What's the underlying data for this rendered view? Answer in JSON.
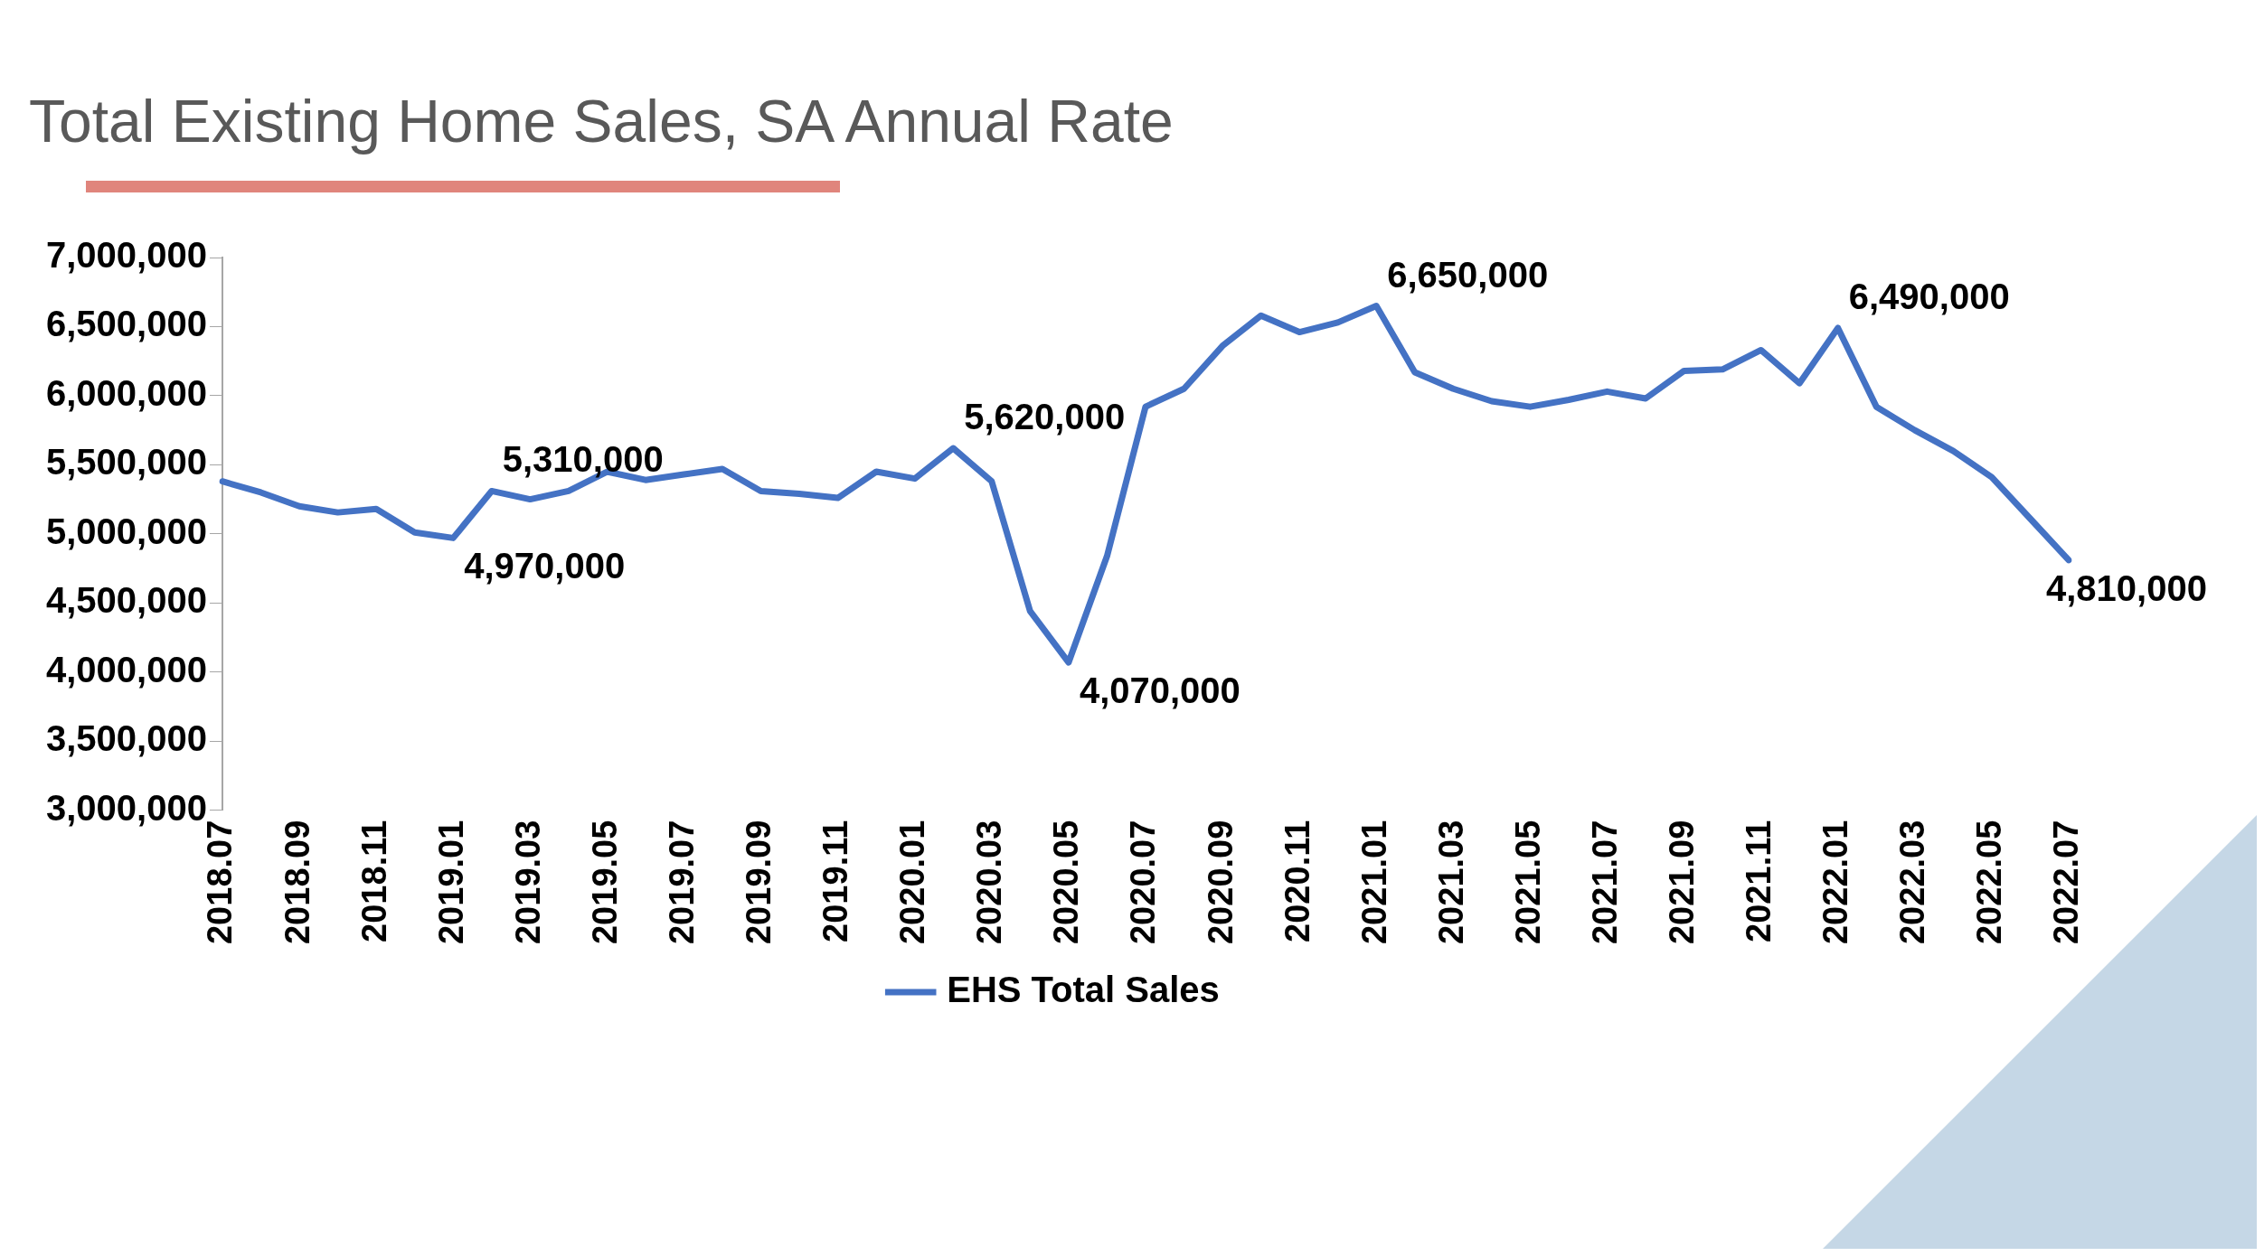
{
  "chart_data": {
    "type": "line",
    "title": "Total Existing Home Sales, SA Annual Rate",
    "categories": [
      "2018.07",
      null,
      "2018.09",
      null,
      "2018.11",
      null,
      "2019.01",
      null,
      "2019.03",
      null,
      "2019.05",
      null,
      "2019.07",
      null,
      "2019.09",
      null,
      "2019.11",
      null,
      "2020.01",
      null,
      "2020.03",
      null,
      "2020.05",
      null,
      "2020.07",
      null,
      "2020.09",
      null,
      "2020.11",
      null,
      "2021.01",
      null,
      "2021.03",
      null,
      "2021.05",
      null,
      "2021.07",
      null,
      "2021.09",
      null,
      "2021.11",
      null,
      "2022.01",
      null,
      "2022.03",
      null,
      "2022.05",
      null,
      "2022.07"
    ],
    "series": [
      {
        "name": "EHS Total Sales",
        "color": "#4472c4",
        "values": [
          5380000,
          5300000,
          5200000,
          5155000,
          5180000,
          5010000,
          4970000,
          5310000,
          5250000,
          5310000,
          5450000,
          5390000,
          5430000,
          5470000,
          5310000,
          5290000,
          5260000,
          5450000,
          5400000,
          5620000,
          5380000,
          4440000,
          4070000,
          4840000,
          5920000,
          6050000,
          6360000,
          6580000,
          6460000,
          6530000,
          6650000,
          6170000,
          6050000,
          5960000,
          5920000,
          5970000,
          6030000,
          5980000,
          6180000,
          6190000,
          6330000,
          6090000,
          6490000,
          5920000,
          5750000,
          5600000,
          5410000,
          5110000,
          4810000
        ],
        "value_labels": [
          null,
          null,
          null,
          null,
          null,
          null,
          "4,970,000",
          "5,310,000",
          null,
          null,
          null,
          null,
          null,
          null,
          null,
          null,
          null,
          null,
          null,
          "5,620,000",
          null,
          null,
          "4,070,000",
          null,
          null,
          null,
          null,
          null,
          null,
          null,
          "6,650,000",
          null,
          null,
          null,
          null,
          null,
          null,
          null,
          null,
          null,
          null,
          null,
          "6,490,000",
          null,
          null,
          null,
          null,
          null,
          "4,810,000"
        ]
      }
    ],
    "ylim": [
      3000000,
      7000000
    ],
    "yticks": [
      {
        "value": 3000000,
        "label": "3,000,000"
      },
      {
        "value": 3500000,
        "label": "3,500,000"
      },
      {
        "value": 4000000,
        "label": "4,000,000"
      },
      {
        "value": 4500000,
        "label": "4,500,000"
      },
      {
        "value": 5000000,
        "label": "5,000,000"
      },
      {
        "value": 5500000,
        "label": "5,500,000"
      },
      {
        "value": 6000000,
        "label": "6,000,000"
      },
      {
        "value": 6500000,
        "label": "6,500,000"
      },
      {
        "value": 7000000,
        "label": "7,000,000"
      }
    ],
    "legend": "bottom",
    "marker": "none",
    "line_style": "solid"
  }
}
